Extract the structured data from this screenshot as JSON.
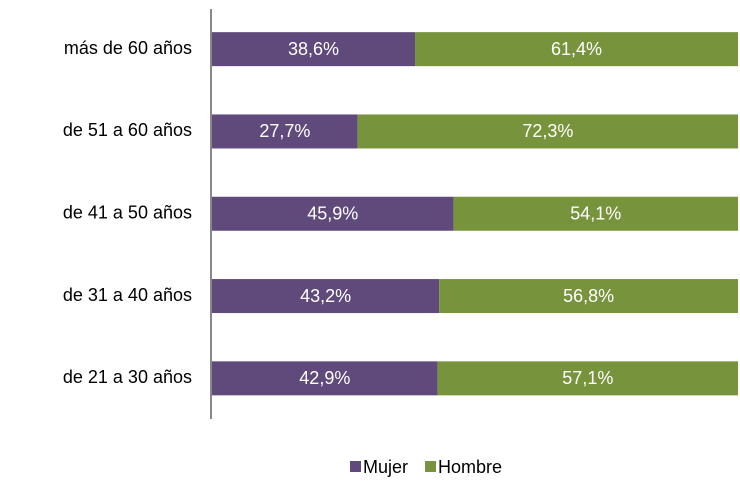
{
  "chart_data": {
    "type": "stacked_bar_horizontal",
    "categories": [
      "más de 60 años",
      "de 51 a 60 años",
      "de 41 a 50 años",
      "de 31 a 40 años",
      "de 21 a 30 años"
    ],
    "series": [
      {
        "name": "Mujer",
        "color": "#604a7b",
        "values": [
          38.6,
          27.7,
          45.9,
          43.2,
          42.9
        ],
        "value_labels": [
          "38,6%",
          "27,7%",
          "45,9%",
          "43,2%",
          "42,9%"
        ]
      },
      {
        "name": "Hombre",
        "color": "#77933c",
        "values": [
          61.4,
          72.3,
          54.1,
          56.8,
          57.1
        ],
        "value_labels": [
          "61,4%",
          "72,3%",
          "54,1%",
          "56,8%",
          "57,1%"
        ]
      }
    ]
  }
}
